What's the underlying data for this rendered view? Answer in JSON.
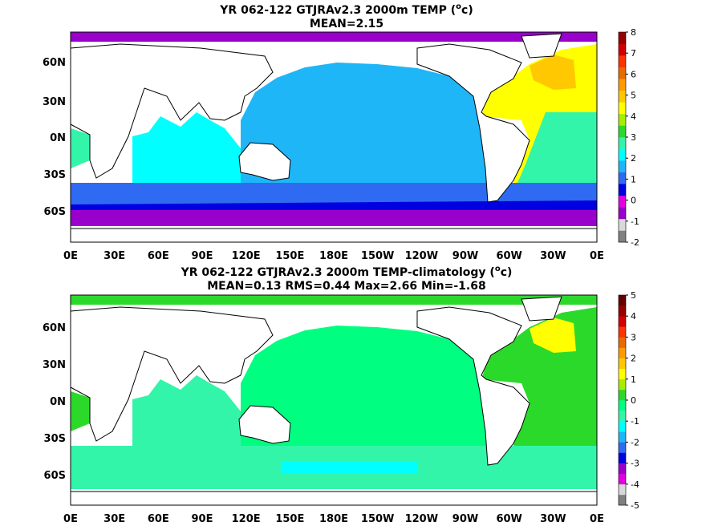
{
  "panels": [
    {
      "id": "top",
      "title_line1_pre": "YR 062-122 GTJRAv2.3 2000m TEMP (",
      "title_line1_sup": "o",
      "title_line1_post": "c)",
      "title_line2": "MEAN=2.15",
      "colorbar": {
        "ticks": [
          "-2",
          "-1",
          "0",
          "1",
          "2",
          "3",
          "4",
          "5",
          "6",
          "7",
          "8"
        ],
        "colors": [
          "#808080",
          "#d8d8d8",
          "#9900cc",
          "#e100e1",
          "#0000e0",
          "#2f6af2",
          "#1fb6f8",
          "#00ffff",
          "#33f5aa",
          "#2bd92b",
          "#a6ed00",
          "#ffff00",
          "#ffc800",
          "#ff9a00",
          "#e86a00",
          "#ff3300",
          "#d40000",
          "#960000"
        ]
      },
      "map": {
        "atlantic_north": "#ffff00",
        "atlantic_subpolar": "#ffc800",
        "atlantic_south": "#33f5aa",
        "indian": "#00ffff",
        "pacific": "#1fb6f8",
        "southern": "#2f6af2",
        "antarctic_edge": "#0000e0",
        "antarctic_margin": "#9900cc"
      }
    },
    {
      "id": "bottom",
      "title_line1_pre": "YR 062-122 GTJRAv2.3 2000m TEMP-climatology (",
      "title_line1_sup": "o",
      "title_line1_post": "c)",
      "title_line2": "MEAN=0.13   RMS=0.44   Max=2.66   Min=-1.68",
      "colorbar": {
        "ticks": [
          "-5",
          "-4",
          "-3",
          "-2",
          "-1",
          "0",
          "1",
          "2",
          "3",
          "4",
          "5"
        ],
        "colors": [
          "#808080",
          "#d8d8d8",
          "#e100e1",
          "#9900cc",
          "#0000e0",
          "#2f6af2",
          "#1fb6f8",
          "#00ffff",
          "#33f5aa",
          "#00ff80",
          "#2bd92b",
          "#a6ed00",
          "#ffff00",
          "#ffc800",
          "#ff9a00",
          "#e86a00",
          "#ff3300",
          "#d40000",
          "#960000",
          "#640000"
        ]
      },
      "map": {
        "atlantic_north": "#2bd92b",
        "atlantic_subpolar": "#ffff00",
        "atlantic_south": "#2bd92b",
        "indian": "#33f5aa",
        "pacific": "#00ff80",
        "southern": "#33f5aa",
        "antarctic_edge": "#00ffff",
        "antarctic_margin": "#33f5aa"
      }
    }
  ],
  "x_ticks": [
    "0E",
    "30E",
    "60E",
    "90E",
    "120E",
    "150E",
    "180E",
    "150W",
    "120W",
    "90W",
    "60W",
    "30W",
    "0E"
  ],
  "y_ticks": [
    "60N",
    "30N",
    "0N",
    "30S",
    "60S"
  ]
}
